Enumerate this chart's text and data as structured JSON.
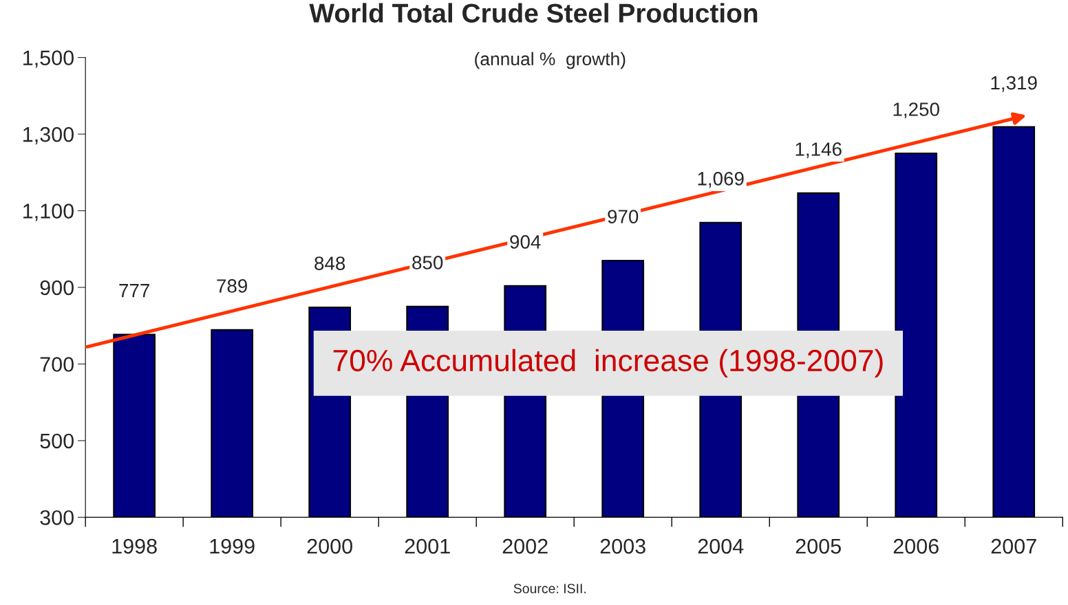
{
  "chart_data": {
    "type": "bar",
    "title": "World Total Crude Steel Production",
    "subtitle": "(annual %  growth)",
    "categories": [
      "1998",
      "1999",
      "2000",
      "2001",
      "2002",
      "2003",
      "2004",
      "2005",
      "2006",
      "2007"
    ],
    "values": [
      777,
      789,
      848,
      850,
      904,
      970,
      1069,
      1146,
      1250,
      1319
    ],
    "value_labels": [
      "777",
      "789",
      "848",
      "850",
      "904",
      "970",
      "1,069",
      "1,146",
      "1,250",
      "1,319"
    ],
    "color": "#000080",
    "ylim": [
      300,
      1500
    ],
    "yticks": [
      300,
      500,
      700,
      900,
      {
        "value": 1100,
        "label": "1,100"
      },
      {
        "value": 1300,
        "label": "1,300"
      },
      {
        "value": 1500,
        "label": "1,500"
      }
    ],
    "grid": false,
    "legend": false,
    "annotations": [
      "70% Accumulated  increase (1998-2007)",
      "Source: ISII."
    ]
  }
}
